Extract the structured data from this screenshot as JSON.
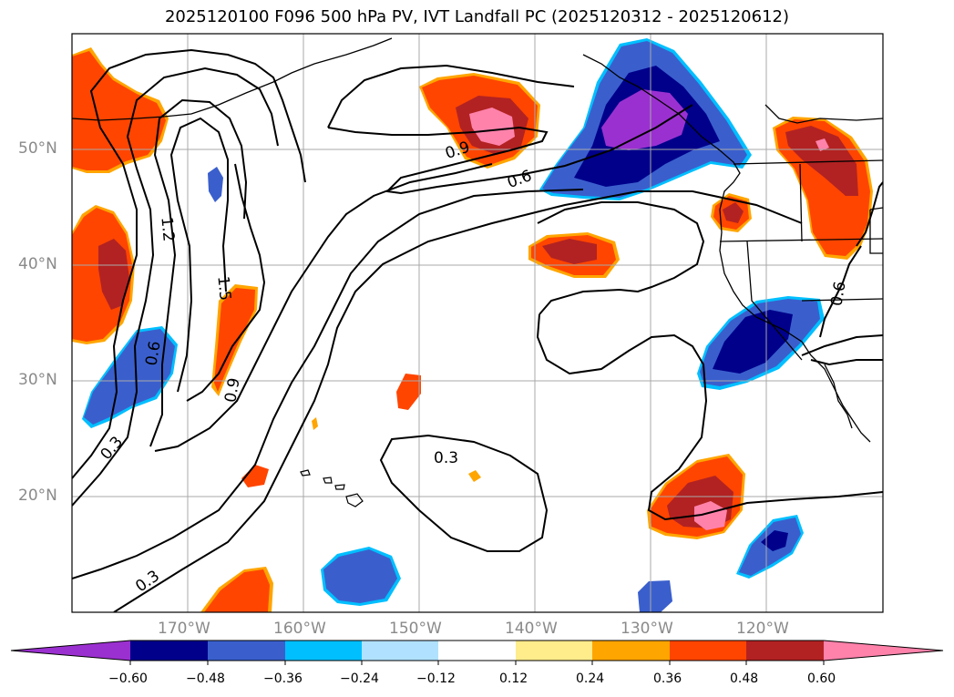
{
  "title": "2025120100 F096 500 hPa PV, IVT Landfall PC (2025120312 - 2025120612)",
  "map": {
    "lon_range": [
      -180,
      -110
    ],
    "lat_range": [
      10,
      60
    ],
    "lat_ticks": [
      {
        "value": 50,
        "label": "50°N"
      },
      {
        "value": 40,
        "label": "40°N"
      },
      {
        "value": 30,
        "label": "30°N"
      },
      {
        "value": 20,
        "label": "20°N"
      }
    ],
    "lon_ticks": [
      {
        "value": -170,
        "label": "170°W"
      },
      {
        "value": -160,
        "label": "160°W"
      },
      {
        "value": -150,
        "label": "150°W"
      },
      {
        "value": -140,
        "label": "140°W"
      },
      {
        "value": -130,
        "label": "130°W"
      },
      {
        "value": -120,
        "label": "120°W"
      }
    ],
    "contour_labels": [
      "1.2",
      "1.5",
      "0.9",
      "0.6",
      "0.3",
      "0.9",
      "0.6",
      "0.3",
      "0.3",
      "0.6",
      "0.6"
    ],
    "contour_levels": [
      0.3,
      0.6,
      0.9,
      1.2,
      1.5
    ]
  },
  "colorbar": {
    "tick_labels": [
      "−0.60",
      "−0.48",
      "−0.36",
      "−0.24",
      "−0.12",
      "0.12",
      "0.24",
      "0.36",
      "0.48",
      "0.60"
    ],
    "colors": [
      "#9b30d0",
      "#00008b",
      "#3a5fcd",
      "#00bfff",
      "#b0e2ff",
      "#ffffff",
      "#ffec8b",
      "#ffa500",
      "#ff4500",
      "#b22222",
      "#ff82ab"
    ]
  }
}
